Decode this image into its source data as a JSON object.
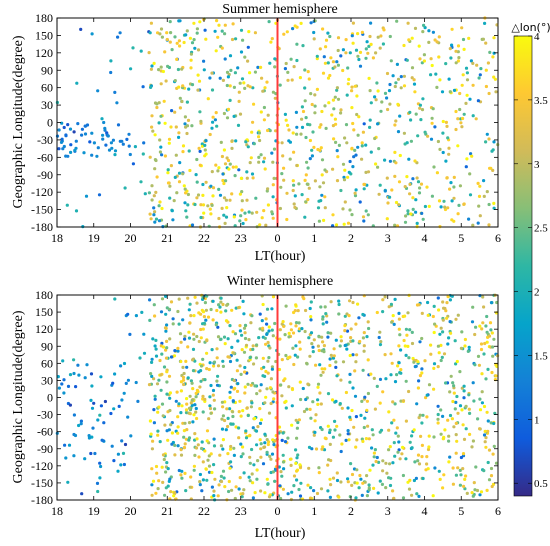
{
  "chart_data": [
    {
      "type": "scatter",
      "title": "Summer hemisphere",
      "xlabel": "LT(hour)",
      "ylabel": "Geographic Longitude(degree)",
      "xlim": [
        18,
        30
      ],
      "ylim": [
        -180,
        180
      ],
      "xticks": [
        18,
        19,
        20,
        21,
        22,
        23,
        24,
        25,
        26,
        27,
        28,
        29,
        30
      ],
      "xticklabels": [
        "18",
        "19",
        "20",
        "21",
        "22",
        "23",
        "0",
        "1",
        "2",
        "3",
        "4",
        "5",
        "6"
      ],
      "yticks": [
        -180,
        -150,
        -120,
        -90,
        -60,
        -30,
        0,
        30,
        60,
        90,
        120,
        150,
        180
      ],
      "yticklabels": [
        "-180",
        "-150",
        "-120",
        "-90",
        "-60",
        "-30",
        "0",
        "30",
        "60",
        "90",
        "120",
        "150",
        "180"
      ],
      "vline": {
        "x": 24,
        "color": "#ff3b3b"
      },
      "grid": false,
      "seed": 1234,
      "density": [
        {
          "x": [
            18.0,
            20.0
          ],
          "y": [
            -60,
            0
          ],
          "count": 55,
          "c": [
            0.6,
            1.6
          ]
        },
        {
          "x": [
            18.0,
            20.5
          ],
          "y": [
            -180,
            180
          ],
          "count": 35,
          "c": [
            0.6,
            2.2
          ]
        },
        {
          "x": [
            20.5,
            24.0
          ],
          "y": [
            -180,
            180
          ],
          "count": 420,
          "c": [
            0.8,
            4.0
          ]
        },
        {
          "x": [
            24.0,
            30.0
          ],
          "y": [
            -180,
            180
          ],
          "count": 560,
          "c": [
            0.8,
            4.0
          ]
        }
      ]
    },
    {
      "type": "scatter",
      "title": "Winter hemisphere",
      "xlabel": "LT(hour)",
      "ylabel": "Geographic Longitude(degree)",
      "xlim": [
        18,
        30
      ],
      "ylim": [
        -180,
        180
      ],
      "xticks": [
        18,
        19,
        20,
        21,
        22,
        23,
        24,
        25,
        26,
        27,
        28,
        29,
        30
      ],
      "xticklabels": [
        "18",
        "19",
        "20",
        "21",
        "22",
        "23",
        "0",
        "1",
        "2",
        "3",
        "4",
        "5",
        "6"
      ],
      "yticks": [
        -180,
        -150,
        -120,
        -90,
        -60,
        -30,
        0,
        30,
        60,
        90,
        120,
        150,
        180
      ],
      "yticklabels": [
        "-180",
        "-150",
        "-120",
        "-90",
        "-60",
        "-30",
        "0",
        "30",
        "60",
        "90",
        "120",
        "150",
        "180"
      ],
      "vline": {
        "x": 24,
        "color": "#ff3b3b"
      },
      "grid": false,
      "seed": 5678,
      "density": [
        {
          "x": [
            18.0,
            20.0
          ],
          "y": [
            -120,
            60
          ],
          "count": 60,
          "c": [
            0.6,
            1.8
          ]
        },
        {
          "x": [
            18.0,
            20.5
          ],
          "y": [
            -180,
            180
          ],
          "count": 30,
          "c": [
            0.6,
            2.2
          ]
        },
        {
          "x": [
            20.5,
            24.0
          ],
          "y": [
            -180,
            180
          ],
          "count": 650,
          "c": [
            0.8,
            4.0
          ]
        },
        {
          "x": [
            24.0,
            30.0
          ],
          "y": [
            -180,
            180
          ],
          "count": 750,
          "c": [
            0.8,
            4.0
          ]
        }
      ]
    }
  ],
  "colorbar": {
    "label": "△lon(°)",
    "range": [
      0.4,
      4.0
    ],
    "ticks": [
      "0.5",
      "1",
      "1.5",
      "2",
      "2.5",
      "3",
      "3.5",
      "4"
    ],
    "tick_values": [
      0.5,
      1,
      1.5,
      2,
      2.5,
      3,
      3.5,
      4
    ],
    "colormap": "parula",
    "colors": [
      "#352a87",
      "#0f5cdd",
      "#1481d6",
      "#06a4ca",
      "#2eb7a4",
      "#87bf77",
      "#d1bb59",
      "#fec832",
      "#f9fb0e"
    ]
  }
}
